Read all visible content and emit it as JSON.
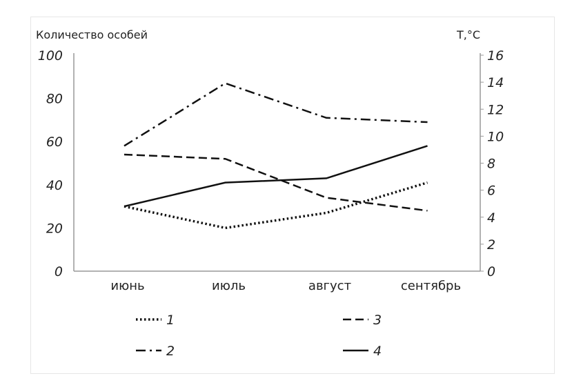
{
  "chart_data": {
    "type": "line",
    "categories": [
      "июнь",
      "июль",
      "август",
      "сентябрь"
    ],
    "ylabel": "Количество особей",
    "y2label": "T,°C",
    "ylim": [
      0,
      100
    ],
    "y2lim": [
      0,
      16
    ],
    "yticks": [
      "0",
      "20",
      "40",
      "60",
      "80",
      "100"
    ],
    "y2ticks": [
      "0",
      "2",
      "4",
      "6",
      "8",
      "10",
      "12",
      "14",
      "16"
    ],
    "grid": false,
    "legend_position": "bottom",
    "series": [
      {
        "name": "1",
        "style": "dotted",
        "values": [
          30,
          20,
          27,
          41
        ]
      },
      {
        "name": "2",
        "style": "dashdot",
        "values": [
          58,
          87,
          71,
          69
        ]
      },
      {
        "name": "3",
        "style": "dashed",
        "values": [
          54,
          52,
          34,
          28
        ]
      },
      {
        "name": "4",
        "style": "solid",
        "values": [
          30,
          41,
          43,
          58
        ]
      }
    ]
  }
}
